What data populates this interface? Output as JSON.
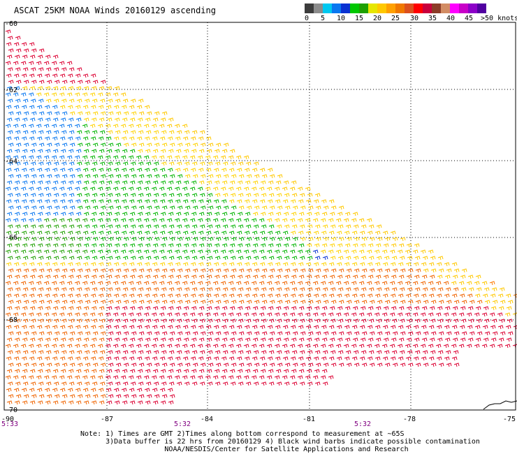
{
  "title": "ASCAT 25KM NOAA Winds 20160129 ascending",
  "legend": {
    "labels": [
      "0",
      "5",
      "10",
      "15",
      "20",
      "25",
      "30",
      "35",
      "40",
      "45",
      ">50 knots"
    ],
    "colors": [
      "#3c3c3c",
      "#8c8c8c",
      "#00c8f0",
      "#0a78f0",
      "#0a32d2",
      "#00c800",
      "#1ea000",
      "#e6e600",
      "#ffc800",
      "#ffa000",
      "#f07800",
      "#dc501e",
      "#ff0000",
      "#c8003c",
      "#8c3c28",
      "#d28c64",
      "#ff00ff",
      "#c800c8",
      "#8c00c8",
      "#5000a0"
    ]
  },
  "axes": {
    "lat_labels": [
      "-60",
      "-62",
      "-64",
      "-66",
      "-68",
      "-70"
    ],
    "lon_labels": [
      "-90",
      "-87",
      "-84",
      "-81",
      "-78",
      "-75"
    ],
    "time_labels": [
      "5:33",
      "5:32",
      "5:32"
    ]
  },
  "notes": {
    "line1": "Note: 1) Times are GMT 2)Times along bottom correspond to measurement at ~65S",
    "line2": "      3)Data buffer is 22 hrs from 20160129 4) Black wind barbs indicate possible contamination",
    "line3": "                    NOAA/NESDIS/Center for Satellite Applications and Research"
  }
}
